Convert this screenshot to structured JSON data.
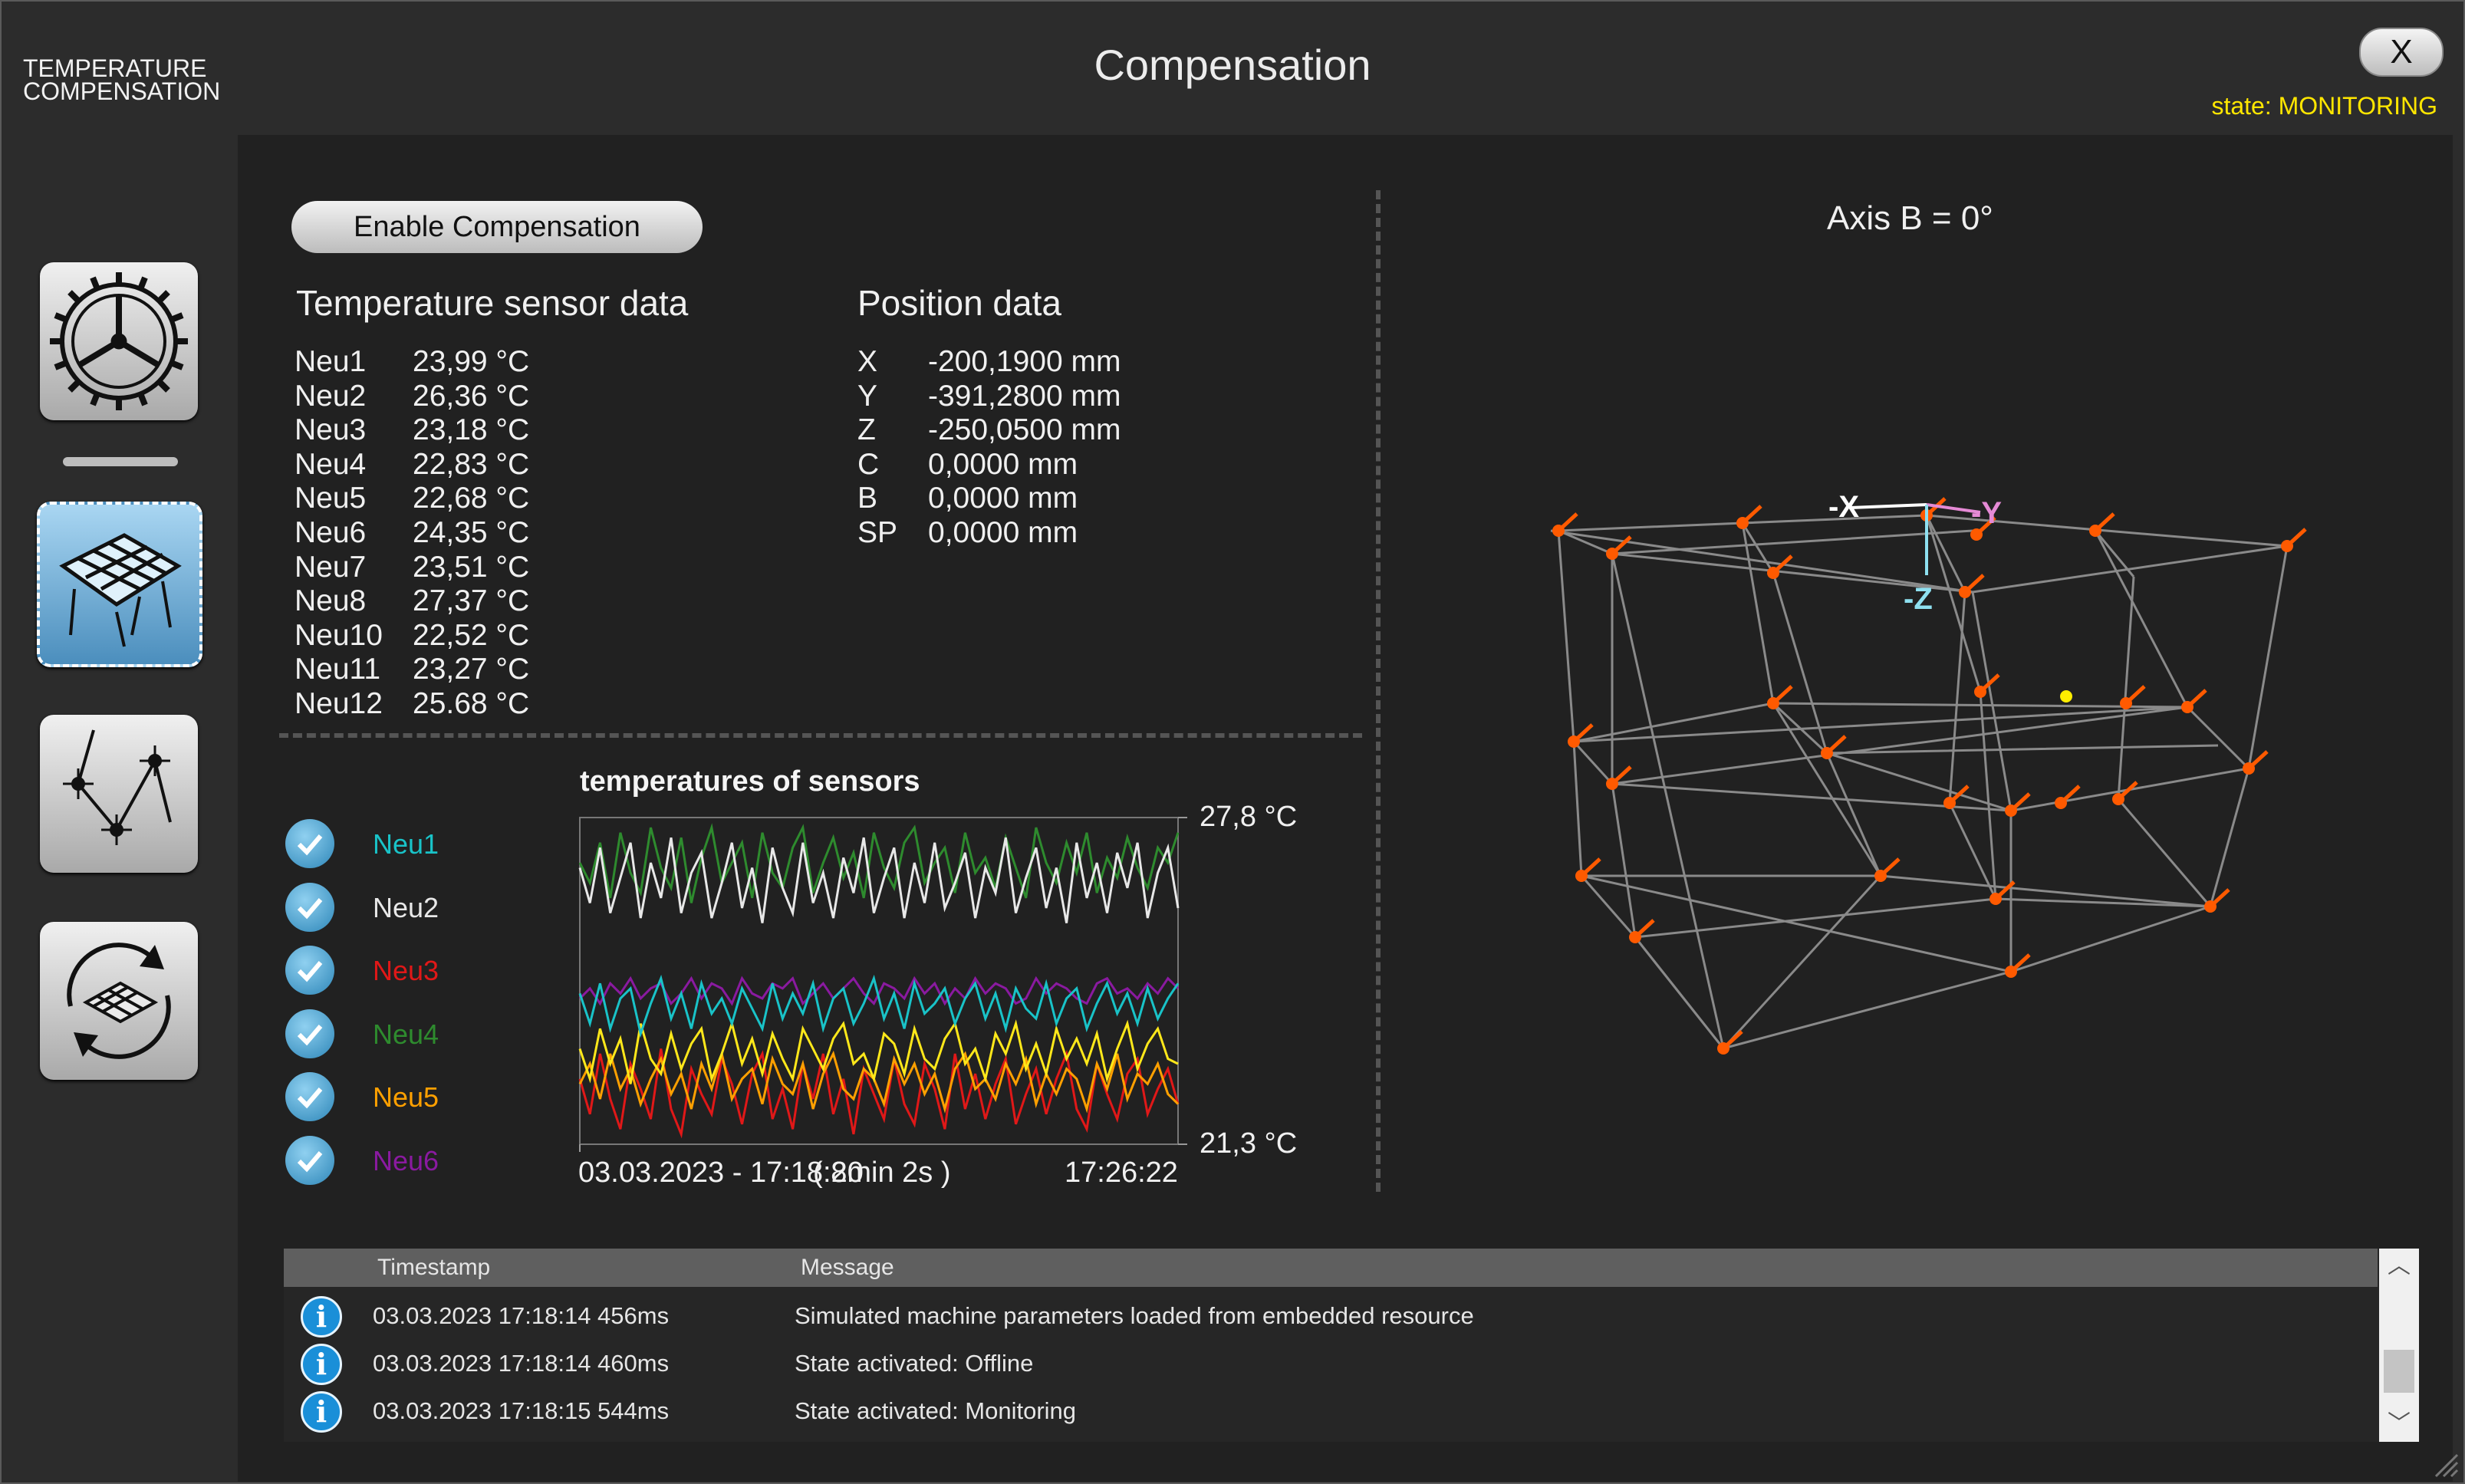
{
  "app": {
    "logo_line1": "TEMPERATURE",
    "logo_line2": "COMPENSATION",
    "title": "Compensation",
    "close_label": "X",
    "state": "state: MONITORING"
  },
  "sidebar": {
    "items": [
      {
        "icon": "machine-settings-icon",
        "active": false
      },
      {
        "icon": "compensation-surface-icon",
        "active": true
      },
      {
        "icon": "sensor-network-icon",
        "active": false
      },
      {
        "icon": "refresh-surface-icon",
        "active": false
      }
    ]
  },
  "controls": {
    "enable_label": "Enable Compensation"
  },
  "sensors": {
    "heading": "Temperature sensor data",
    "items": [
      {
        "name": "Neu1",
        "value": "23,99 °C"
      },
      {
        "name": "Neu2",
        "value": "26,36 °C"
      },
      {
        "name": "Neu3",
        "value": "23,18 °C"
      },
      {
        "name": "Neu4",
        "value": "22,83 °C"
      },
      {
        "name": "Neu5",
        "value": "22,68 °C"
      },
      {
        "name": "Neu6",
        "value": "24,35 °C"
      },
      {
        "name": "Neu7",
        "value": "23,51 °C"
      },
      {
        "name": "Neu8",
        "value": "27,37 °C"
      },
      {
        "name": "Neu10",
        "value": "22,52 °C"
      },
      {
        "name": "Neu11",
        "value": "23,27 °C"
      },
      {
        "name": "Neu12",
        "value": "25.68 °C"
      }
    ]
  },
  "position": {
    "heading": "Position data",
    "items": [
      {
        "axis": "X",
        "value": "-200,1900 mm"
      },
      {
        "axis": "Y",
        "value": "-391,2800 mm"
      },
      {
        "axis": "Z",
        "value": "-250,0500 mm"
      },
      {
        "axis": "C",
        "value": "0,0000 mm"
      },
      {
        "axis": "B",
        "value": "0,0000 mm"
      },
      {
        "axis": "SP",
        "value": "0,0000 mm"
      }
    ]
  },
  "chart_data": {
    "type": "line",
    "title": "temperatures of sensors",
    "ylim": [
      21.3,
      27.8
    ],
    "y_top_label": "27,8 °C",
    "y_bottom_label": "21,3 °C",
    "x_start_label": "03.03.2023 - 17:18:20",
    "x_span_label": "( 8min 2s )",
    "x_end_label": "17:26:22",
    "series": [
      {
        "name": "Neu1",
        "color": "#19c3c8",
        "values": [
          24.3,
          23.7,
          24.5,
          23.6,
          24.2,
          24.4,
          23.5,
          24.1,
          24.6,
          23.8,
          24.3,
          23.6,
          24.5,
          23.9,
          24.2,
          23.7,
          24.4,
          24.0,
          23.6,
          24.5,
          23.8,
          24.3,
          23.9,
          24.5,
          23.6,
          24.2,
          24.4,
          23.7,
          24.1,
          24.6,
          23.8,
          24.3,
          23.6,
          24.5,
          23.9,
          24.1,
          24.4,
          23.7,
          24.2,
          24.5,
          23.8,
          24.3,
          23.6,
          24.4,
          24.0,
          23.8,
          24.5,
          23.7,
          24.2,
          24.4,
          23.6,
          24.1,
          24.5,
          23.9,
          24.3,
          23.7,
          24.4,
          23.8,
          24.2,
          24.5
        ]
      },
      {
        "name": "Neu2",
        "color": "#e8e8e8",
        "values": [
          26.8,
          26.1,
          27.2,
          25.9,
          26.6,
          27.3,
          25.8,
          26.9,
          26.2,
          27.4,
          25.9,
          26.7,
          27.1,
          25.8,
          26.5,
          27.3,
          26.0,
          26.8,
          25.7,
          27.2,
          26.4,
          25.9,
          27.3,
          26.1,
          26.7,
          25.8,
          27.0,
          26.3,
          27.4,
          25.9,
          26.6,
          27.2,
          25.8,
          26.9,
          26.1,
          27.3,
          26.0,
          26.5,
          27.1,
          25.8,
          26.8,
          26.3,
          27.4,
          25.9,
          26.6,
          27.2,
          26.0,
          26.8,
          25.7,
          27.3,
          26.2,
          26.9,
          25.9,
          27.1,
          26.4,
          27.3,
          25.8,
          26.7,
          27.2,
          26.0
        ]
      },
      {
        "name": "Neu3",
        "color": "#e01818",
        "values": [
          22.6,
          21.9,
          23.1,
          22.2,
          21.6,
          22.9,
          22.4,
          21.8,
          23.2,
          22.0,
          21.5,
          22.8,
          22.3,
          21.9,
          23.0,
          22.5,
          21.7,
          22.7,
          23.1,
          21.8,
          22.4,
          21.6,
          22.9,
          22.2,
          23.1,
          21.9,
          22.6,
          21.5,
          22.8,
          22.3,
          21.8,
          23.0,
          22.1,
          21.7,
          22.9,
          22.4,
          21.6,
          23.1,
          22.0,
          22.7,
          21.8,
          22.5,
          23.0,
          21.7,
          22.3,
          22.8,
          21.9,
          22.6,
          23.1,
          22.0,
          21.6,
          22.9,
          22.3,
          21.8,
          22.7,
          23.0,
          21.9,
          22.4,
          22.8,
          22.1
        ]
      },
      {
        "name": "Neu4",
        "color": "#2e8b2e",
        "values": [
          26.9,
          26.5,
          27.3,
          26.2,
          27.5,
          26.7,
          26.3,
          27.6,
          26.8,
          26.4,
          27.4,
          26.1,
          27.0,
          27.6,
          26.5,
          26.9,
          27.3,
          26.2,
          27.5,
          26.7,
          26.4,
          27.2,
          27.6,
          26.3,
          26.9,
          27.4,
          26.6,
          27.1,
          26.2,
          27.5,
          26.8,
          26.4,
          27.3,
          27.6,
          26.5,
          26.9,
          27.2,
          26.3,
          27.5,
          26.7,
          27.0,
          26.4,
          27.4,
          26.8,
          26.2,
          27.6,
          26.9,
          26.5,
          27.3,
          26.7,
          27.5,
          26.3,
          27.0,
          26.6,
          27.4,
          26.8,
          26.4,
          27.2,
          26.9,
          27.5
        ]
      },
      {
        "name": "Neu5",
        "color": "#ffa000",
        "values": [
          22.5,
          22.9,
          22.2,
          23.1,
          22.4,
          22.8,
          22.1,
          22.6,
          23.0,
          22.3,
          22.7,
          22.0,
          22.9,
          22.4,
          23.1,
          22.2,
          22.6,
          22.8,
          22.1,
          23.0,
          22.5,
          22.3,
          22.9,
          22.0,
          22.7,
          23.1,
          22.4,
          22.2,
          22.8,
          22.6,
          22.1,
          23.0,
          22.5,
          22.9,
          22.3,
          22.7,
          22.0,
          22.8,
          23.1,
          22.4,
          22.6,
          22.2,
          22.9,
          22.5,
          23.0,
          22.1,
          22.7,
          22.3,
          22.8,
          22.6,
          22.0,
          22.9,
          22.4,
          23.1,
          22.2,
          22.7,
          22.5,
          22.9,
          22.3,
          22.1
        ]
      },
      {
        "name": "Neu6",
        "color": "#8a1aa0",
        "values": [
          24.2,
          24.4,
          24.1,
          24.5,
          24.3,
          24.6,
          24.2,
          24.4,
          24.5,
          24.1,
          24.3,
          24.6,
          24.2,
          24.5,
          24.4,
          24.1,
          24.6,
          24.3,
          24.2,
          24.5,
          24.4,
          24.6,
          24.1,
          24.3,
          24.5,
          24.2,
          24.4,
          24.6,
          24.3,
          24.1,
          24.5,
          24.4,
          24.2,
          24.6,
          24.3,
          24.5,
          24.1,
          24.4,
          24.2,
          24.6,
          24.3,
          24.5,
          24.4,
          24.1,
          24.2,
          24.6,
          24.3,
          24.5,
          24.4,
          24.2,
          24.1,
          24.5,
          24.6,
          24.3,
          24.4,
          24.2,
          24.5,
          24.3,
          24.6,
          24.4
        ]
      },
      {
        "name": "",
        "color": "#ffe81a",
        "values": [
          23.2,
          22.6,
          23.6,
          22.9,
          23.4,
          22.5,
          23.7,
          23.0,
          22.7,
          23.5,
          22.8,
          23.3,
          23.6,
          22.6,
          23.1,
          23.7,
          22.9,
          23.4,
          22.7,
          23.5,
          23.0,
          22.6,
          23.6,
          23.2,
          22.8,
          23.4,
          23.7,
          22.9,
          23.1,
          22.6,
          23.5,
          23.3,
          22.7,
          23.6,
          23.0,
          22.8,
          23.4,
          23.7,
          22.9,
          23.2,
          22.6,
          23.5,
          23.1,
          23.7,
          22.8,
          23.3,
          22.7,
          23.6,
          23.0,
          23.4,
          22.9,
          23.5,
          22.6,
          23.2,
          23.7,
          22.8,
          23.3,
          23.6,
          23.0,
          22.9
        ]
      }
    ]
  },
  "view3d": {
    "axis_label": "Axis B = 0°",
    "labels": {
      "x": "-X",
      "y": "-Y",
      "z": "-Z"
    }
  },
  "log": {
    "col_timestamp": "Timestamp",
    "col_message": "Message",
    "rows": [
      {
        "timestamp": "03.03.2023 17:18:14 456ms",
        "message": "Simulated machine parameters loaded from embedded resource"
      },
      {
        "timestamp": "03.03.2023 17:18:14 460ms",
        "message": "State activated: Offline"
      },
      {
        "timestamp": "03.03.2023 17:18:15 544ms",
        "message": "State activated: Monitoring"
      }
    ]
  }
}
